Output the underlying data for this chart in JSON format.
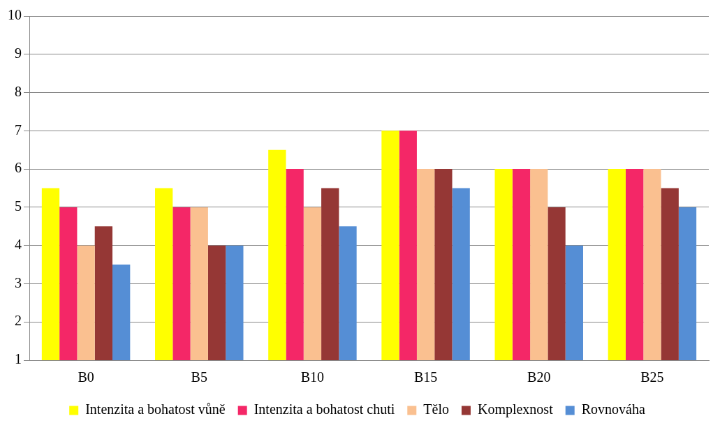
{
  "chart_data": {
    "type": "bar",
    "categories": [
      "B0",
      "B5",
      "B10",
      "B15",
      "B20",
      "B25"
    ],
    "series": [
      {
        "name": "Intenzita a bohatost vůně",
        "color": "#ffff00",
        "values": [
          5.5,
          5.5,
          6.5,
          7,
          6,
          6
        ]
      },
      {
        "name": "Intenzita a bohatost chuti",
        "color": "#f42767",
        "values": [
          5,
          5,
          6,
          7,
          6,
          6
        ]
      },
      {
        "name": "Tělo",
        "color": "#fac090",
        "values": [
          4,
          5,
          5,
          6,
          6,
          6
        ]
      },
      {
        "name": "Komplexnost",
        "color": "#953735",
        "values": [
          4.5,
          4,
          5.5,
          6,
          5,
          5.5
        ]
      },
      {
        "name": "Rovnováha",
        "color": "#558ed5",
        "values": [
          3.5,
          4,
          4.5,
          5.5,
          4,
          5
        ]
      }
    ],
    "ylim": [
      1,
      10
    ],
    "yticks": [
      1,
      2,
      3,
      4,
      5,
      6,
      7,
      8,
      9,
      10
    ],
    "grid": "y",
    "legend": "bottom"
  }
}
